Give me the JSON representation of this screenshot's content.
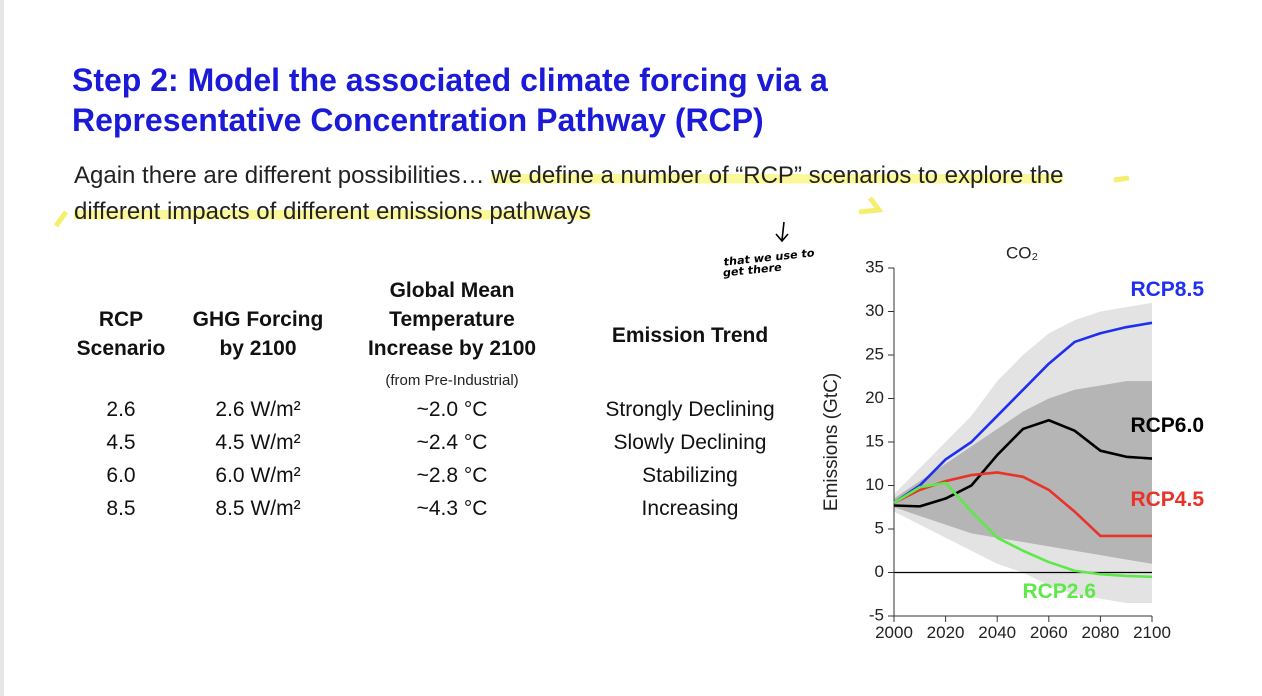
{
  "header": {
    "title": "Step 2: Model the associated climate forcing via a Representative Concentration Pathway (RCP)"
  },
  "body": {
    "lead": "Again there are different possibilities…  ",
    "highlight": "we define a number of “RCP” scenarios to explore the different impacts of different emissions pathways"
  },
  "annotation": {
    "text": "that we use to\nget there"
  },
  "table": {
    "headers": [
      "RCP\nScenario",
      "GHG Forcing\nby 2100",
      "Global Mean\nTemperature\nIncrease by 2100",
      "Emission Trend"
    ],
    "note": "(from Pre-Industrial)",
    "rows": [
      [
        "2.6",
        "2.6 W/m²",
        "~2.0 °C",
        "Strongly Declining"
      ],
      [
        "4.5",
        "4.5 W/m²",
        "~2.4 °C",
        "Slowly Declining"
      ],
      [
        "6.0",
        "6.0 W/m²",
        "~2.8 °C",
        "Stabilizing"
      ],
      [
        "8.5",
        "8.5 W/m²",
        "~4.3 °C",
        "Increasing"
      ]
    ]
  },
  "chart_data": {
    "type": "line",
    "title": "CO₂",
    "y_label": "Emissions (GtC)",
    "x": [
      2000,
      2010,
      2020,
      2030,
      2040,
      2050,
      2060,
      2070,
      2080,
      2090,
      2100
    ],
    "xlim": [
      2000,
      2100
    ],
    "xticks": [
      2000,
      2020,
      2040,
      2060,
      2080,
      2100
    ],
    "ylim": [
      -5,
      35
    ],
    "yticks": [
      -5,
      0,
      5,
      10,
      15,
      20,
      25,
      30,
      35
    ],
    "ranges": [
      {
        "color": "#e3e3e3",
        "lower": [
          7,
          5.5,
          4,
          2.5,
          1,
          0,
          -1.5,
          -2.5,
          -3,
          -3.5,
          -3.5
        ],
        "upper": [
          9,
          12,
          15,
          18,
          22,
          25,
          27.5,
          29,
          30,
          30.5,
          31
        ]
      },
      {
        "color": "#b5b5b5",
        "lower": [
          7.5,
          6.5,
          5.5,
          4.5,
          4,
          3.5,
          3,
          2.5,
          2,
          1.5,
          1
        ],
        "upper": [
          8.5,
          10.5,
          12.5,
          14.5,
          16.5,
          18.5,
          20,
          21,
          21.5,
          22,
          22
        ]
      }
    ],
    "series": [
      {
        "name": "RCP8.5",
        "color": "#1f2ff0",
        "values": [
          8,
          10,
          13,
          15,
          18,
          21,
          24,
          26.5,
          27.5,
          28.2,
          28.7
        ]
      },
      {
        "name": "RCP6.0",
        "color": "#000000",
        "values": [
          7.7,
          7.6,
          8.5,
          10,
          13.5,
          16.5,
          17.5,
          16.3,
          14,
          13.3,
          13.1
        ]
      },
      {
        "name": "RCP4.5",
        "color": "#e8322a",
        "values": [
          8,
          9.5,
          10.5,
          11.2,
          11.5,
          11,
          9.5,
          7,
          4.2,
          4.2,
          4.2
        ]
      },
      {
        "name": "RCP2.6",
        "color": "#5ee84a",
        "values": [
          8,
          9.8,
          10.3,
          7,
          4,
          2.5,
          1.2,
          0.2,
          -0.2,
          -0.4,
          -0.5
        ]
      }
    ]
  }
}
